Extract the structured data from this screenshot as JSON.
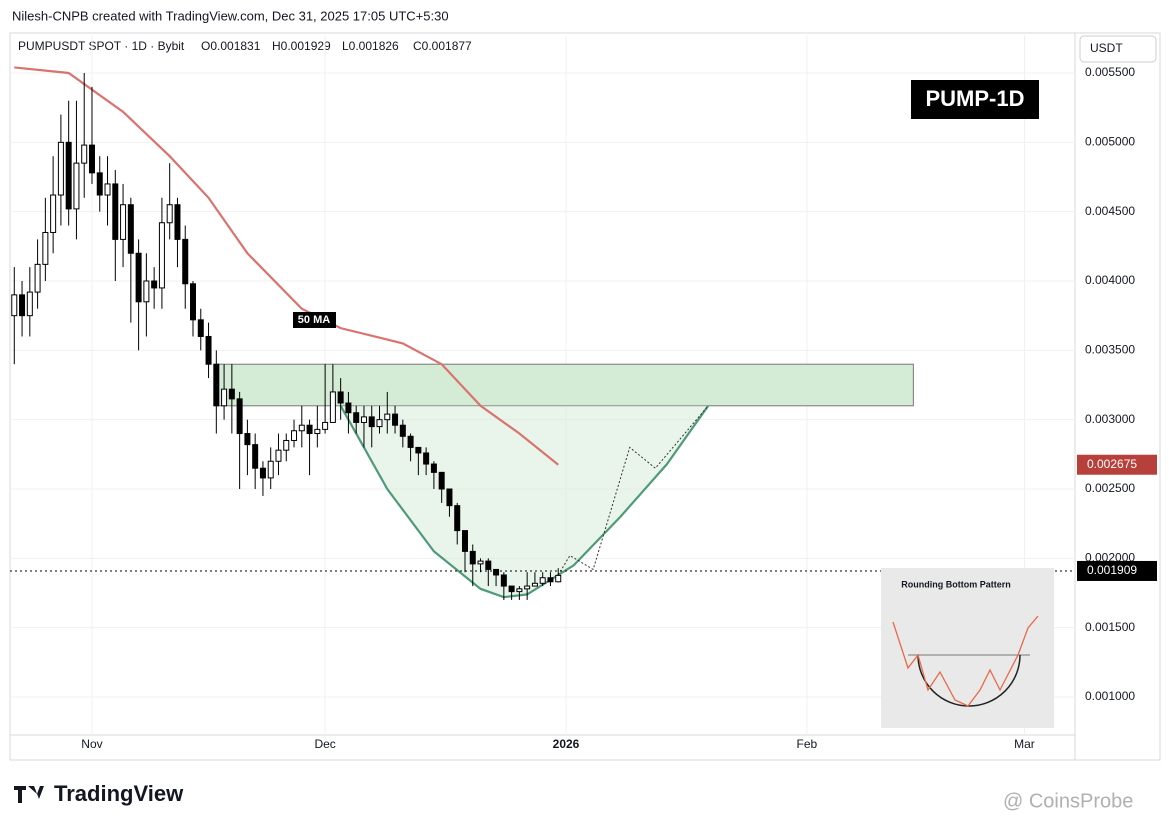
{
  "chart_data": {
    "type": "candlestick",
    "credit": "Nilesh-CNPB created with TradingView.com, Dec 31, 2025 17:05 UTC+5:30",
    "subtitle": "PUMPUSDT SPOT · 1D · Bybit",
    "ohlc_labels": [
      "O0.001831",
      "H0.001929",
      "L0.001826",
      "C0.001877"
    ],
    "title": "PUMP-1D",
    "currency": "USDT",
    "brand": "TradingView",
    "watermark": "@ CoinsProbe",
    "inset_title": "Rounding Bottom Pattern",
    "up_color": "#ffffff",
    "down_color": "#000000",
    "grid": true,
    "xlim": [
      -10.55,
      126.5
    ],
    "xticks": [
      {
        "value": 0,
        "label": "Nov"
      },
      {
        "value": 30,
        "label": "Dec"
      },
      {
        "value": 61,
        "label": "2026"
      },
      {
        "value": 92,
        "label": "Feb"
      },
      {
        "value": 120,
        "label": "Mar"
      }
    ],
    "ylim": [
      0.000726,
      0.005774
    ],
    "yticks": [
      {
        "value": 0.001,
        "label": "0.001000"
      },
      {
        "value": 0.0015,
        "label": "0.001500"
      },
      {
        "value": 0.002,
        "label": "0.002000"
      },
      {
        "value": 0.0025,
        "label": "0.002500"
      },
      {
        "value": 0.003,
        "label": "0.003000"
      },
      {
        "value": 0.0035,
        "label": "0.003500"
      },
      {
        "value": 0.004,
        "label": "0.004000"
      },
      {
        "value": 0.0045,
        "label": "0.004500"
      },
      {
        "value": 0.005,
        "label": "0.005000"
      },
      {
        "value": 0.0055,
        "label": "0.005500"
      }
    ],
    "x": [
      -10,
      -9,
      -8,
      -7,
      -6,
      -5,
      -4,
      -3,
      -2,
      -1,
      0,
      1,
      2,
      3,
      4,
      5,
      6,
      7,
      8,
      9,
      10,
      11,
      12,
      13,
      14,
      15,
      16,
      17,
      18,
      19,
      20,
      21,
      22,
      23,
      24,
      25,
      26,
      27,
      28,
      29,
      30,
      31,
      32,
      33,
      34,
      35,
      36,
      37,
      38,
      39,
      40,
      41,
      42,
      43,
      44,
      45,
      46,
      47,
      48,
      49,
      50,
      51,
      52,
      53,
      54,
      55,
      56,
      57,
      58,
      59,
      60
    ],
    "open": [
      0.00375,
      0.0039,
      0.00375,
      0.00392,
      0.00412,
      0.00435,
      0.00462,
      0.005,
      0.00452,
      0.00485,
      0.00498,
      0.00478,
      0.00462,
      0.0047,
      0.0043,
      0.00455,
      0.0042,
      0.00385,
      0.004,
      0.00395,
      0.00442,
      0.00455,
      0.0043,
      0.00398,
      0.00372,
      0.0036,
      0.0034,
      0.0031,
      0.00322,
      0.00315,
      0.0029,
      0.00282,
      0.00265,
      0.00258,
      0.0027,
      0.00278,
      0.00285,
      0.00292,
      0.00296,
      0.0029,
      0.00293,
      0.00298,
      0.0032,
      0.00312,
      0.00305,
      0.00298,
      0.00302,
      0.00295,
      0.003,
      0.00304,
      0.00296,
      0.00288,
      0.0028,
      0.00276,
      0.00268,
      0.00262,
      0.0025,
      0.00238,
      0.0022,
      0.00205,
      0.00196,
      0.00198,
      0.00192,
      0.00188,
      0.0018,
      0.00176,
      0.00178,
      0.0018,
      0.00182,
      0.00186,
      0.001831
    ],
    "high": [
      0.0041,
      0.004,
      0.0041,
      0.0043,
      0.0046,
      0.0049,
      0.0052,
      0.0053,
      0.0053,
      0.0055,
      0.0054,
      0.0049,
      0.0049,
      0.0048,
      0.0047,
      0.0046,
      0.0043,
      0.0042,
      0.0041,
      0.0046,
      0.00485,
      0.0046,
      0.0044,
      0.004,
      0.0038,
      0.0037,
      0.0035,
      0.0034,
      0.0034,
      0.0032,
      0.003,
      0.0029,
      0.0027,
      0.0028,
      0.0029,
      0.0029,
      0.003,
      0.0031,
      0.003,
      0.0031,
      0.0034,
      0.0034,
      0.0033,
      0.0032,
      0.0031,
      0.0031,
      0.0031,
      0.0031,
      0.0032,
      0.0031,
      0.003,
      0.0029,
      0.0028,
      0.0028,
      0.0027,
      0.0026,
      0.0025,
      0.0024,
      0.0022,
      0.0021,
      0.002,
      0.002,
      0.0019,
      0.0019,
      0.0018,
      0.0018,
      0.0019,
      0.0019,
      0.0019,
      0.0019,
      0.001929
    ],
    "low": [
      0.0034,
      0.0036,
      0.0036,
      0.0038,
      0.004,
      0.0042,
      0.0044,
      0.0044,
      0.0043,
      0.0046,
      0.0047,
      0.0045,
      0.0044,
      0.004,
      0.0041,
      0.0037,
      0.0035,
      0.0036,
      0.0038,
      0.0038,
      0.0043,
      0.0041,
      0.0038,
      0.0036,
      0.0035,
      0.0033,
      0.0029,
      0.003,
      0.0029,
      0.0025,
      0.0026,
      0.0025,
      0.00245,
      0.0025,
      0.0026,
      0.0027,
      0.0028,
      0.0028,
      0.0026,
      0.0028,
      0.0029,
      0.003,
      0.003,
      0.0029,
      0.0029,
      0.0028,
      0.0028,
      0.0029,
      0.0029,
      0.0029,
      0.0028,
      0.0027,
      0.0026,
      0.0026,
      0.0025,
      0.0024,
      0.0023,
      0.0021,
      0.0019,
      0.0018,
      0.0019,
      0.0018,
      0.0018,
      0.0017,
      0.0017,
      0.0017,
      0.0017,
      0.0018,
      0.0018,
      0.0018,
      0.001826
    ],
    "close": [
      0.0039,
      0.00375,
      0.00392,
      0.00412,
      0.00435,
      0.00462,
      0.005,
      0.00452,
      0.00485,
      0.00498,
      0.00478,
      0.00462,
      0.0047,
      0.0043,
      0.00455,
      0.0042,
      0.00385,
      0.004,
      0.00395,
      0.00442,
      0.00455,
      0.0043,
      0.00398,
      0.00372,
      0.0036,
      0.0034,
      0.0031,
      0.00322,
      0.00315,
      0.0029,
      0.00282,
      0.00265,
      0.00258,
      0.0027,
      0.00278,
      0.00285,
      0.00292,
      0.00296,
      0.0029,
      0.00293,
      0.00298,
      0.0032,
      0.00312,
      0.00305,
      0.00298,
      0.00302,
      0.00295,
      0.003,
      0.00304,
      0.00296,
      0.00288,
      0.0028,
      0.00276,
      0.00268,
      0.00262,
      0.0025,
      0.00238,
      0.0022,
      0.00205,
      0.00196,
      0.00198,
      0.00192,
      0.00188,
      0.0018,
      0.00176,
      0.00178,
      0.0018,
      0.00182,
      0.00186,
      0.001831,
      0.001877
    ],
    "ma": {
      "name": "50 MA",
      "color": "#d9736f",
      "label_color": "#b8403b",
      "x": [
        -10,
        -3,
        4,
        10,
        15,
        20,
        27,
        32,
        40,
        45,
        50,
        55,
        60
      ],
      "values": [
        0.00554,
        0.0055,
        0.00522,
        0.0049,
        0.0046,
        0.0042,
        0.0038,
        0.00366,
        0.00355,
        0.0034,
        0.0031,
        0.0029,
        0.002675
      ],
      "value_label": "0.002675"
    },
    "last_price": {
      "value": 0.001909,
      "label": "0.001909"
    },
    "zone": {
      "x": [
        16,
        105.7
      ],
      "y": [
        0.0031,
        0.0034
      ],
      "color": "#d4ecd5"
    },
    "curve": {
      "color": "#4e9a79",
      "x": [
        32,
        38,
        44,
        50,
        53,
        56,
        62,
        68,
        74,
        79.3
      ],
      "values": [
        0.0031,
        0.0025,
        0.00205,
        0.00178,
        0.00172,
        0.00174,
        0.00195,
        0.0023,
        0.00268,
        0.0031
      ]
    },
    "projection": {
      "x": [
        60,
        61.5,
        64.5,
        69.2,
        72.5,
        79.3
      ],
      "values": [
        0.00188,
        0.00202,
        0.00192,
        0.0028,
        0.00265,
        0.0031
      ]
    }
  }
}
